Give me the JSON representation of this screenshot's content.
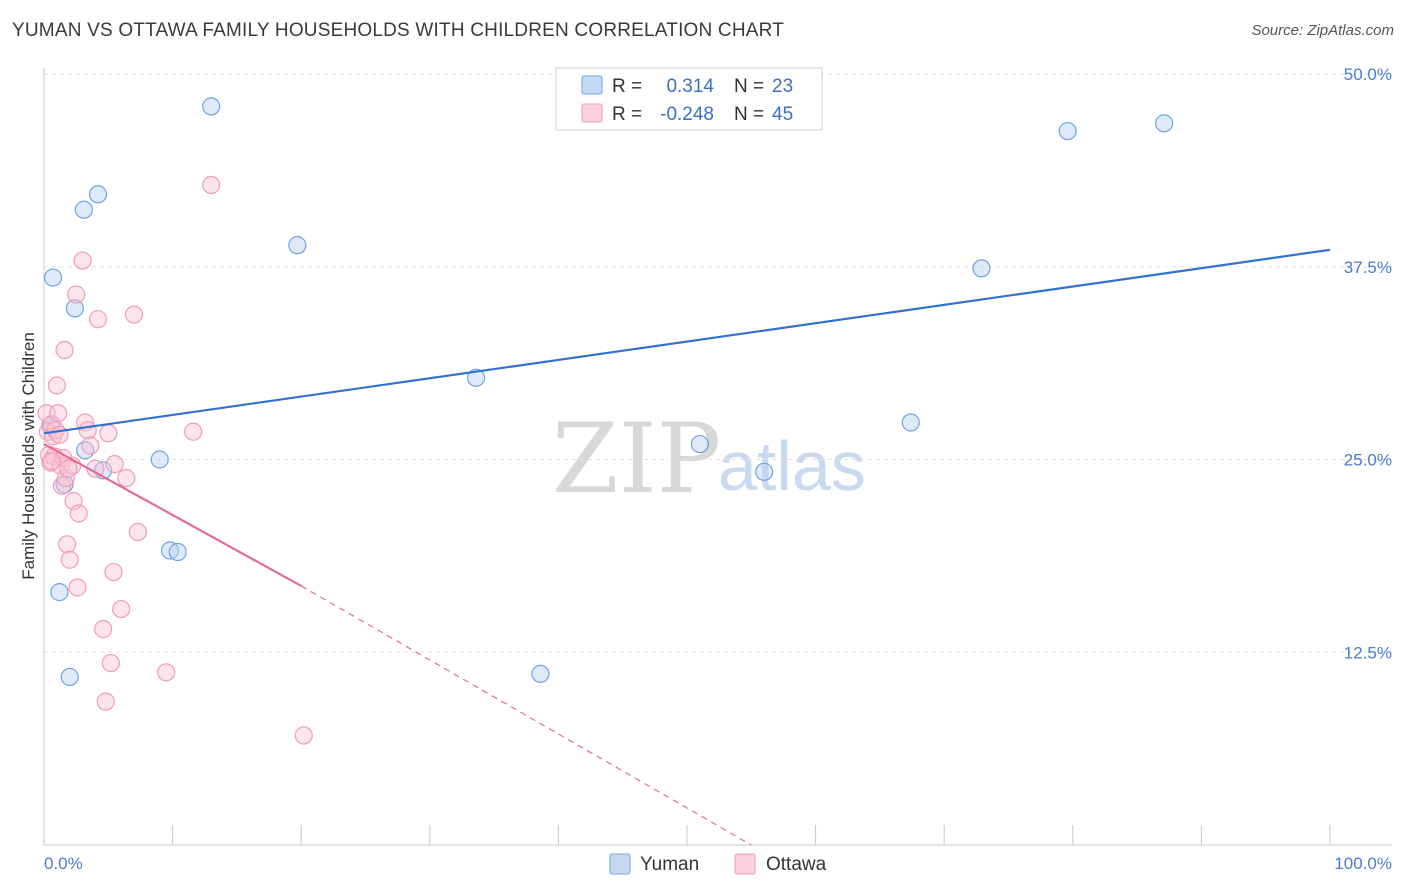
{
  "header": {
    "title": "YUMAN VS OTTAWA FAMILY HOUSEHOLDS WITH CHILDREN CORRELATION CHART",
    "source": "Source: ZipAtlas.com"
  },
  "watermark": {
    "zip": "ZIP",
    "atlas": "atlas"
  },
  "legend_box": {
    "rows": [
      {
        "r_label": "R =",
        "r_value": "0.314",
        "n_label": "N =",
        "n_value": "23"
      },
      {
        "r_label": "R =",
        "r_value": "-0.248",
        "n_label": "N =",
        "n_value": "45"
      }
    ]
  },
  "chart_data": {
    "type": "scatter",
    "title": "YUMAN VS OTTAWA FAMILY HOUSEHOLDS WITH CHILDREN CORRELATION CHART",
    "xlabel": "",
    "ylabel": "Family Households with Children",
    "xlim": [
      0,
      100
    ],
    "ylim": [
      0,
      50
    ],
    "x_tick_labels": [
      "0.0%",
      "100.0%"
    ],
    "y_ticks": [
      12.5,
      25.0,
      37.5,
      50.0
    ],
    "y_tick_labels": [
      "12.5%",
      "25.0%",
      "37.5%",
      "50.0%"
    ],
    "grid": true,
    "legend_position": "bottom-center",
    "colors": {
      "yuman": "#6fa3e6",
      "ottawa": "#f29bb8",
      "yuman_line": "#2f72d0",
      "ottawa_line": "#e56b96"
    },
    "series": [
      {
        "name": "Yuman",
        "r": 0.314,
        "n": 23,
        "trend": {
          "x": [
            0,
            100
          ],
          "y": [
            26.7,
            38.6
          ],
          "style": "solid"
        },
        "points": [
          {
            "x": 0.7,
            "y": 36.8
          },
          {
            "x": 2.4,
            "y": 34.8
          },
          {
            "x": 3.1,
            "y": 41.2
          },
          {
            "x": 4.2,
            "y": 42.2
          },
          {
            "x": 3.2,
            "y": 25.6
          },
          {
            "x": 1.6,
            "y": 23.4
          },
          {
            "x": 4.6,
            "y": 24.3
          },
          {
            "x": 1.2,
            "y": 16.4
          },
          {
            "x": 2.0,
            "y": 10.9
          },
          {
            "x": 9.0,
            "y": 25.0
          },
          {
            "x": 9.8,
            "y": 19.1
          },
          {
            "x": 10.4,
            "y": 19.0
          },
          {
            "x": 13.0,
            "y": 47.9
          },
          {
            "x": 19.7,
            "y": 38.9
          },
          {
            "x": 33.6,
            "y": 30.3
          },
          {
            "x": 38.6,
            "y": 11.1
          },
          {
            "x": 51.0,
            "y": 26.0
          },
          {
            "x": 56.0,
            "y": 24.2
          },
          {
            "x": 67.4,
            "y": 27.4
          },
          {
            "x": 72.9,
            "y": 37.4
          },
          {
            "x": 79.6,
            "y": 46.3
          },
          {
            "x": 87.1,
            "y": 46.8
          },
          {
            "x": 0.5,
            "y": 27.2
          }
        ]
      },
      {
        "name": "Ottawa",
        "r": -0.248,
        "n": 45,
        "trend": {
          "x": [
            0,
            20,
            55
          ],
          "y": [
            26.0,
            16.8,
            0
          ],
          "style": "solid-then-dashed"
        },
        "points": [
          {
            "x": 0.2,
            "y": 28.0
          },
          {
            "x": 0.3,
            "y": 26.8
          },
          {
            "x": 0.4,
            "y": 25.3
          },
          {
            "x": 0.5,
            "y": 24.8
          },
          {
            "x": 0.6,
            "y": 27.3
          },
          {
            "x": 0.7,
            "y": 26.5
          },
          {
            "x": 0.8,
            "y": 25.2
          },
          {
            "x": 0.9,
            "y": 26.9
          },
          {
            "x": 1.0,
            "y": 29.8
          },
          {
            "x": 1.1,
            "y": 28.0
          },
          {
            "x": 1.2,
            "y": 26.6
          },
          {
            "x": 1.3,
            "y": 24.6
          },
          {
            "x": 1.4,
            "y": 23.3
          },
          {
            "x": 1.5,
            "y": 25.1
          },
          {
            "x": 1.6,
            "y": 32.1
          },
          {
            "x": 1.7,
            "y": 23.8
          },
          {
            "x": 1.8,
            "y": 19.5
          },
          {
            "x": 2.0,
            "y": 18.5
          },
          {
            "x": 2.2,
            "y": 24.6
          },
          {
            "x": 2.3,
            "y": 22.3
          },
          {
            "x": 2.5,
            "y": 35.7
          },
          {
            "x": 2.6,
            "y": 16.7
          },
          {
            "x": 2.7,
            "y": 21.5
          },
          {
            "x": 3.0,
            "y": 37.9
          },
          {
            "x": 3.2,
            "y": 27.4
          },
          {
            "x": 3.4,
            "y": 26.9
          },
          {
            "x": 3.6,
            "y": 25.9
          },
          {
            "x": 4.0,
            "y": 24.4
          },
          {
            "x": 4.2,
            "y": 34.1
          },
          {
            "x": 4.6,
            "y": 14.0
          },
          {
            "x": 4.8,
            "y": 9.3
          },
          {
            "x": 5.0,
            "y": 26.7
          },
          {
            "x": 5.2,
            "y": 11.8
          },
          {
            "x": 5.4,
            "y": 17.7
          },
          {
            "x": 5.5,
            "y": 24.7
          },
          {
            "x": 6.0,
            "y": 15.3
          },
          {
            "x": 6.4,
            "y": 23.8
          },
          {
            "x": 7.0,
            "y": 34.4
          },
          {
            "x": 7.3,
            "y": 20.3
          },
          {
            "x": 9.5,
            "y": 11.2
          },
          {
            "x": 11.6,
            "y": 26.8
          },
          {
            "x": 13.0,
            "y": 42.8
          },
          {
            "x": 20.2,
            "y": 7.1
          },
          {
            "x": 1.9,
            "y": 24.4
          },
          {
            "x": 0.6,
            "y": 24.9
          }
        ]
      }
    ]
  }
}
